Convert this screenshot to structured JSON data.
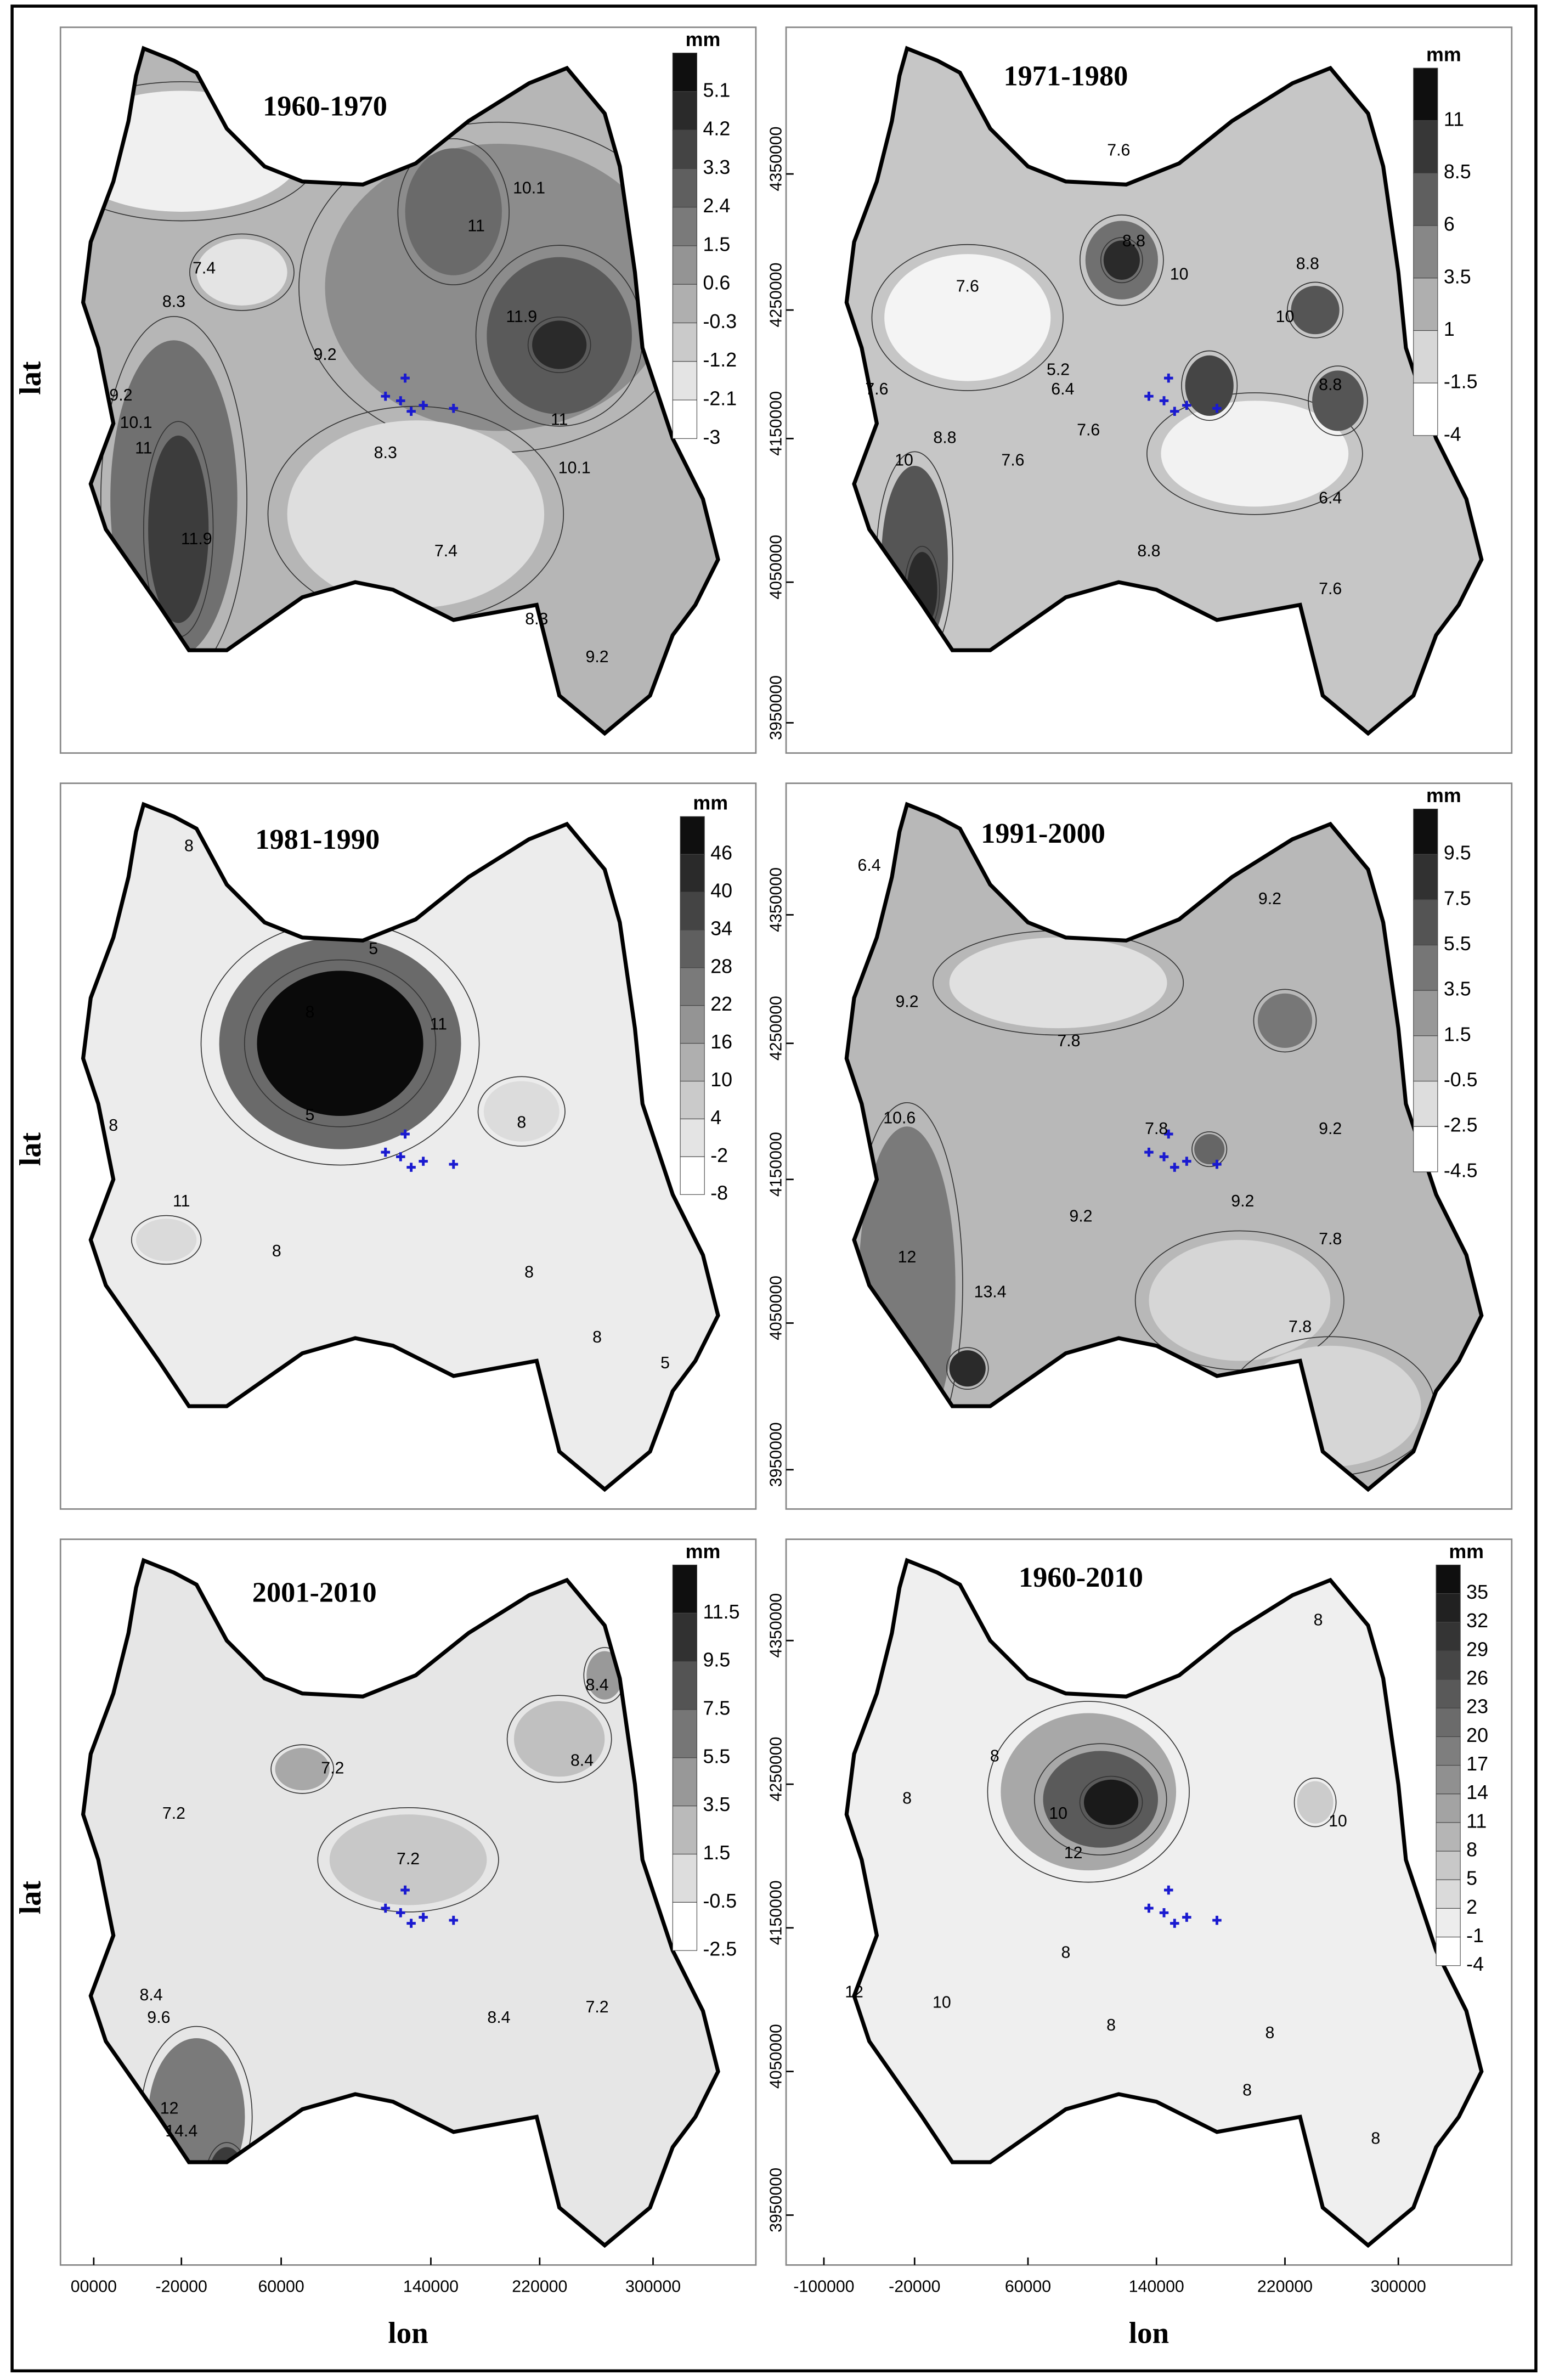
{
  "panels": [
    {
      "title": "1960-1970",
      "legend_unit": "mm",
      "legend_levels": [
        5.1,
        4.2,
        3.3,
        2.4,
        1.5,
        0.6,
        -0.3,
        -1.2,
        -2.1,
        -3
      ],
      "contour_labels": [
        10.1,
        11,
        7.4,
        8.3,
        9.2,
        10.1,
        11,
        11.9,
        11.9,
        9.2,
        8.3,
        7.4,
        8.3,
        9.2,
        10.1,
        11
      ],
      "y_label": "lat"
    },
    {
      "title": "1971-1980",
      "legend_unit": "mm",
      "legend_levels": [
        11,
        8.5,
        6,
        3.5,
        1,
        -1.5,
        -4
      ],
      "contour_labels": [
        7.6,
        8.8,
        7.6,
        10,
        5.2,
        6.4,
        7.6,
        8.8,
        7.6,
        7.6,
        10,
        8.8,
        8.8,
        6.4,
        8.8,
        7.6,
        10
      ],
      "yticks": [
        4350000,
        4250000,
        4150000,
        4050000,
        3950000
      ]
    },
    {
      "title": "1981-1990",
      "legend_unit": "mm",
      "legend_levels": [
        46,
        40,
        34,
        28,
        22,
        16,
        10,
        4,
        -2,
        -8
      ],
      "contour_labels": [
        8,
        5,
        8,
        8,
        11,
        8,
        8,
        8,
        5,
        11,
        8,
        5
      ],
      "y_label": "lat"
    },
    {
      "title": "1991-2000",
      "legend_unit": "mm",
      "legend_levels": [
        9.5,
        7.5,
        5.5,
        3.5,
        1.5,
        -0.5,
        -2.5,
        -4.5
      ],
      "contour_labels": [
        6.4,
        9.2,
        9.2,
        7.8,
        7.8,
        9.2,
        10.6,
        12,
        9.2,
        9.2,
        7.8,
        13.4,
        7.8
      ],
      "yticks": [
        4350000,
        4250000,
        4150000,
        4050000,
        3950000
      ]
    },
    {
      "title": "2001-2010",
      "legend_unit": "mm",
      "legend_levels": [
        11.5,
        9.5,
        7.5,
        5.5,
        3.5,
        1.5,
        -0.5,
        -2.5
      ],
      "contour_labels": [
        8.4,
        8.4,
        7.2,
        7.2,
        7.2,
        8.4,
        9.6,
        7.2,
        8.4,
        12,
        14.4
      ],
      "y_label": "lat",
      "x_label": "lon",
      "xticks": [
        {
          "value": 0,
          "label": "00000"
        },
        -20000,
        60000,
        140000,
        220000,
        300000
      ]
    },
    {
      "title": "1960-2010",
      "legend_unit": "mm",
      "legend_levels": [
        35,
        32,
        29,
        26,
        23,
        20,
        17,
        14,
        11,
        8,
        5,
        2,
        -1,
        -4
      ],
      "contour_labels": [
        8,
        8,
        8,
        10,
        12,
        10,
        12,
        10,
        8,
        8,
        8,
        8,
        8
      ],
      "yticks": [
        4350000,
        4250000,
        4150000,
        4050000,
        3950000
      ],
      "x_label": "lon",
      "xticks": [
        -100000,
        -20000,
        60000,
        140000,
        220000,
        300000
      ]
    }
  ]
}
